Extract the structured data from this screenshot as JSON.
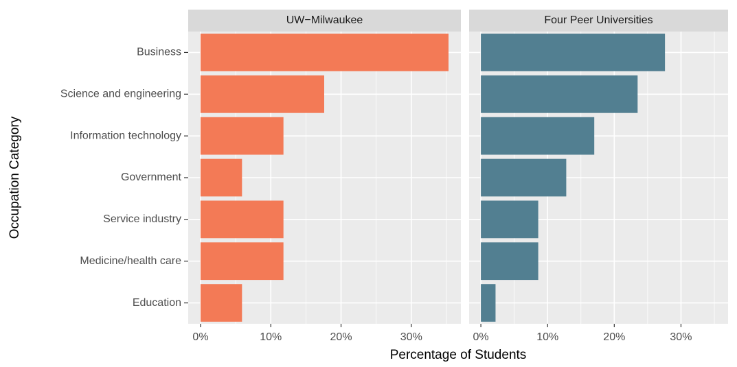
{
  "chart_data": {
    "type": "bar",
    "orientation": "horizontal",
    "xlabel": "Percentage of Students",
    "ylabel": "Occupation Category",
    "categories": [
      "Business",
      "Science and engineering",
      "Information technology",
      "Government",
      "Service industry",
      "Medicine/health care",
      "Education"
    ],
    "series": [
      {
        "name": "UW−Milwaukee",
        "color": "#f37a56",
        "values": [
          35.3,
          17.6,
          11.8,
          5.9,
          11.8,
          11.8,
          5.9
        ]
      },
      {
        "name": "Four Peer Universities",
        "color": "#527f91",
        "values": [
          27.6,
          23.5,
          17.0,
          12.8,
          8.6,
          8.6,
          2.2
        ]
      }
    ],
    "xlim": [
      -1.76,
      37.06
    ],
    "xticks": [
      {
        "value": 0,
        "label": "0%"
      },
      {
        "value": 10,
        "label": "10%"
      },
      {
        "value": 20,
        "label": "20%"
      },
      {
        "value": 30,
        "label": "30%"
      }
    ],
    "xminorticks": [
      5,
      15,
      25,
      35
    ],
    "grid": true
  }
}
